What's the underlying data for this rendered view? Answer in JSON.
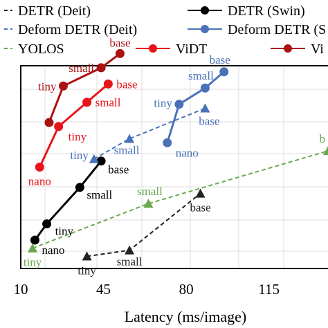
{
  "chart_data": {
    "type": "line",
    "xlabel": "Latency (ms/image)",
    "ylabel": "",
    "xlim": [
      10,
      140
    ],
    "ylim": [
      0,
      100
    ],
    "xticks": [
      10,
      45,
      80,
      115
    ],
    "grid": true,
    "legend_position": "top",
    "colors": {
      "detr_deit": "#222222",
      "detr_swin": "#000000",
      "deform_deit": "#4a72b8",
      "deform_swin": "#4a72b8",
      "yolos": "#6aa84f",
      "vidt": "#e8141a",
      "vidt_dark": "#aa1212"
    },
    "legend": [
      {
        "label": "DETR (Deit)",
        "color": "#222222",
        "dashed": true,
        "marker": "none"
      },
      {
        "label": "DETR (Swin)",
        "color": "#000000",
        "dashed": false,
        "marker": "circle"
      },
      {
        "label": "Deform DETR (Deit)",
        "color": "#4a72b8",
        "dashed": true,
        "marker": "none"
      },
      {
        "label": "Deform DETR (S",
        "color": "#4a72b8",
        "dashed": false,
        "marker": "circle"
      },
      {
        "label": "YOLOS",
        "color": "#6aa84f",
        "dashed": true,
        "marker": "none"
      },
      {
        "label": "ViDT",
        "color": "#e8141a",
        "dashed": false,
        "marker": "circle"
      },
      {
        "label": "Vi",
        "color": "#aa1212",
        "dashed": false,
        "marker": "circle"
      }
    ],
    "series": [
      {
        "color": "#000000",
        "dashed": false,
        "marker": "circle",
        "points": [
          {
            "x": 16,
            "y": 14,
            "label": "nano"
          },
          {
            "x": 21,
            "y": 22,
            "label": "tiny"
          },
          {
            "x": 35,
            "y": 40,
            "label": "small"
          },
          {
            "x": 44,
            "y": 53,
            "label": "base"
          }
        ]
      },
      {
        "color": "#222222",
        "dashed": true,
        "marker": "triangle",
        "points": [
          {
            "x": 38,
            "y": 6,
            "label": "tiny"
          },
          {
            "x": 56,
            "y": 9,
            "label": "small"
          },
          {
            "x": 86,
            "y": 37,
            "label": "base"
          }
        ]
      },
      {
        "color": "#4a72b8",
        "dashed": true,
        "marker": "triangle",
        "points": [
          {
            "x": 41,
            "y": 54,
            "label": "tiny"
          },
          {
            "x": 56,
            "y": 64,
            "label": "small"
          },
          {
            "x": 88,
            "y": 79,
            "label": "base"
          }
        ]
      },
      {
        "color": "#4a72b8",
        "dashed": false,
        "marker": "circle",
        "points": [
          {
            "x": 72,
            "y": 62,
            "label": "nano"
          },
          {
            "x": 77,
            "y": 81,
            "label": "tiny"
          },
          {
            "x": 88,
            "y": 89,
            "label": "small"
          },
          {
            "x": 96,
            "y": 97,
            "label": "base"
          }
        ]
      },
      {
        "color": "#6aa84f",
        "dashed": true,
        "marker": "triangle",
        "points": [
          {
            "x": 15,
            "y": 10,
            "label": "tiny"
          },
          {
            "x": 64,
            "y": 32,
            "label": "small"
          },
          {
            "x": 140,
            "y": 58,
            "label": "b"
          }
        ]
      },
      {
        "color": "#e8141a",
        "dashed": false,
        "marker": "circle",
        "points": [
          {
            "x": 18,
            "y": 50,
            "label": "nano"
          },
          {
            "x": 26,
            "y": 70,
            "label": "tiny"
          },
          {
            "x": 38,
            "y": 82,
            "label": "small"
          },
          {
            "x": 47,
            "y": 91,
            "label": "base"
          }
        ]
      },
      {
        "color": "#aa1212",
        "dashed": false,
        "marker": "circle",
        "points": [
          {
            "x": 22,
            "y": 72,
            "label": ""
          },
          {
            "x": 28,
            "y": 90,
            "label": "tiny"
          },
          {
            "x": 44,
            "y": 99,
            "label": "small"
          },
          {
            "x": 52,
            "y": 106,
            "label": "base"
          }
        ]
      }
    ]
  }
}
